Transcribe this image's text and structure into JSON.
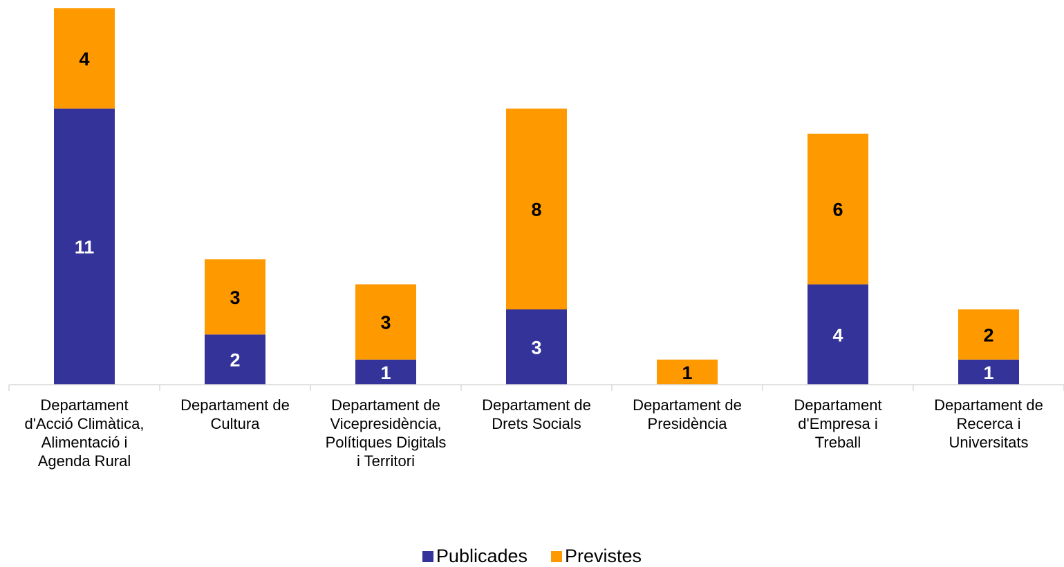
{
  "chart_data": {
    "type": "bar",
    "stacked": true,
    "categories": [
      [
        "Departament",
        "d'Acció Climàtica,",
        "Alimentació i",
        "Agenda Rural"
      ],
      [
        "Departament de",
        "Cultura"
      ],
      [
        "Departament de",
        "Vicepresidència,",
        "Polítiques Digitals",
        "i Territori"
      ],
      [
        "Departament de",
        "Drets Socials"
      ],
      [
        "Departament de",
        "Presidència"
      ],
      [
        "Departament",
        "d'Empresa i",
        "Treball"
      ],
      [
        "Departament de",
        "Recerca i",
        "Universitats"
      ]
    ],
    "series": [
      {
        "name": "Publicades",
        "color": "#333399",
        "label_color": "#ffffff",
        "values": [
          11,
          2,
          1,
          3,
          0,
          4,
          1
        ]
      },
      {
        "name": "Previstes",
        "color": "#ff9900",
        "label_color": "#000000",
        "values": [
          4,
          3,
          3,
          8,
          1,
          6,
          2
        ]
      }
    ],
    "ylim": [
      0,
      15
    ],
    "grid": false,
    "legend": "bottom",
    "data_labels": true
  }
}
